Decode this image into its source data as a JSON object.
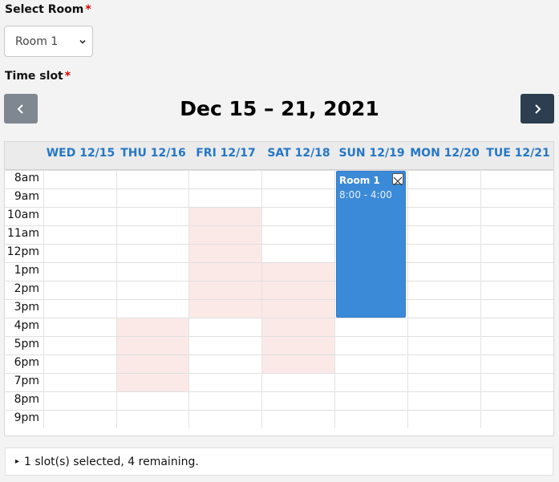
{
  "room": {
    "label": "Select Room",
    "required_mark": "*",
    "selected": "Room 1"
  },
  "timeslot": {
    "label": "Time slot",
    "required_mark": "*"
  },
  "calendar": {
    "title": "Dec 15 – 21, 2021",
    "days": [
      "WED 12/15",
      "THU 12/16",
      "FRI 12/17",
      "SAT 12/18",
      "SUN 12/19",
      "MON 12/20",
      "TUE 12/21"
    ],
    "hours": [
      "8am",
      "9am",
      "10am",
      "11am",
      "12pm",
      "1pm",
      "2pm",
      "3pm",
      "4pm",
      "5pm",
      "6pm",
      "7pm",
      "8pm",
      "9pm"
    ],
    "blocked_slots": [
      {
        "day": 2,
        "start": 2,
        "end": 8
      },
      {
        "day": 3,
        "start": 5,
        "end": 11
      },
      {
        "day": 1,
        "start": 8,
        "end": 12
      }
    ],
    "event": {
      "day": 4,
      "start": 0,
      "end": 8,
      "title": "Room 1",
      "time": "8:00 - 4:00",
      "color": "#3b8ad8"
    }
  },
  "summary": {
    "text": "1 slot(s) selected, 4 remaining."
  },
  "icons": {
    "prev": "chevron-left-icon",
    "next": "chevron-right-icon",
    "dropdown": "chevron-down-icon",
    "close": "close-icon",
    "disclosure": "triangle-right-icon"
  },
  "colors": {
    "accent": "#2577c7",
    "blocked": "#fbe9e8",
    "event": "#3b8ad8",
    "required": "#dd0000"
  }
}
